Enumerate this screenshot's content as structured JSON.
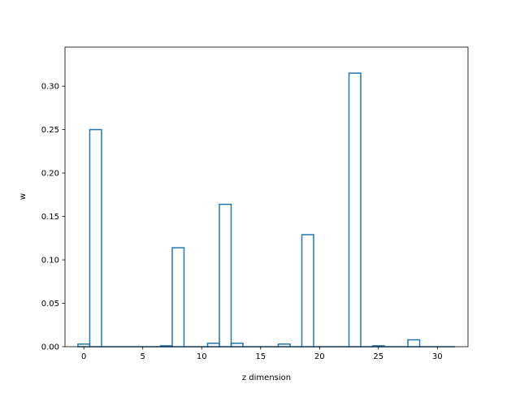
{
  "chart_data": {
    "type": "histogram-step",
    "title": "",
    "xlabel": "z dimension",
    "ylabel": "w",
    "xlim": [
      -1.6,
      32.6
    ],
    "ylim": [
      0,
      0.345
    ],
    "grid": false,
    "legend": "none",
    "line_color": "#1f77b4",
    "x_ticks": [
      0,
      5,
      10,
      15,
      20,
      25,
      30
    ],
    "y_ticks": [
      0.0,
      0.05,
      0.1,
      0.15,
      0.2,
      0.25,
      0.3
    ],
    "x_tick_labels": [
      "0",
      "5",
      "10",
      "15",
      "20",
      "25",
      "30"
    ],
    "y_tick_labels": [
      "0.00",
      "0.05",
      "0.10",
      "0.15",
      "0.20",
      "0.25",
      "0.30"
    ],
    "bins": [
      0,
      1,
      2,
      3,
      4,
      5,
      6,
      7,
      8,
      9,
      10,
      11,
      12,
      13,
      14,
      15,
      16,
      17,
      18,
      19,
      20,
      21,
      22,
      23,
      24,
      25,
      26,
      27,
      28,
      29,
      30,
      31
    ],
    "values": [
      0.003,
      0.25,
      0.0,
      0.0,
      0.0,
      0.0,
      0.0,
      0.001,
      0.114,
      0.0,
      0.0,
      0.004,
      0.164,
      0.004,
      0.0,
      0.0,
      0.0,
      0.003,
      0.0,
      0.129,
      0.0,
      0.0,
      0.0,
      0.315,
      0.0,
      0.001,
      0.0,
      0.0,
      0.008,
      0.0,
      0.0,
      0.0
    ]
  }
}
